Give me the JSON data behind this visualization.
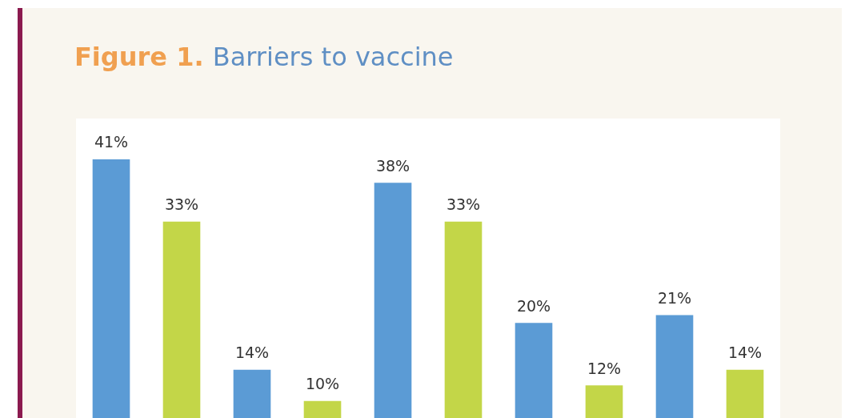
{
  "chart_data": {
    "type": "bar",
    "title": "Figure 1. Barriers to vaccine",
    "categories": [
      null,
      null,
      null,
      null,
      null,
      null,
      null,
      null,
      null,
      null
    ],
    "series": [
      {
        "colors": [
          "#5b9bd5",
          "#c3d648",
          "#5b9bd5",
          "#c3d648",
          "#5b9bd5",
          "#c3d648",
          "#5b9bd5",
          "#c3d648",
          "#5b9bd5",
          "#c3d648"
        ],
        "values": [
          41,
          33,
          14,
          10,
          38,
          33,
          20,
          12,
          21,
          14
        ],
        "value_labels": [
          "41%",
          "33%",
          "14%",
          "10%",
          "38%",
          "33%",
          "20%",
          "12%",
          "21%",
          "14%"
        ]
      }
    ],
    "legend": false
  }
}
